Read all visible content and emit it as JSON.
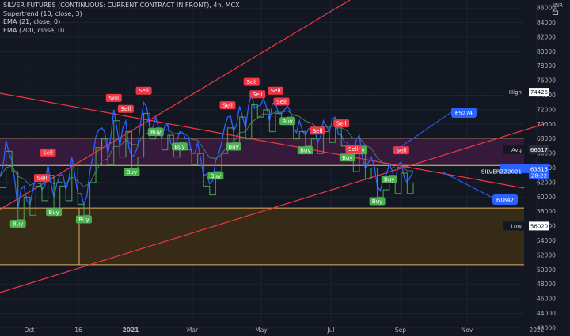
{
  "legend": {
    "symbol": "SILVER FUTURES (CONTINUOUS: CURRENT CONTRACT IN FRONT), 4h, MCX",
    "indicator1": "Supertrend (10, close, 3)",
    "indicator2": "EMA (21, close, 0)",
    "indicator3": "EMA (200, close, 0)"
  },
  "currency": "INR",
  "colors": {
    "background": "#131722",
    "price": "#2962ff",
    "buy": "#4caf50",
    "sell": "#f23645",
    "trend": "#f23645",
    "upper_zone": "#3d1b3f",
    "lower_zone": "#3a2e15",
    "grid": "#1e222d"
  },
  "chart_data": {
    "type": "line",
    "y_ticks": [
      42000,
      44000,
      46000,
      48000,
      50000,
      52000,
      54000,
      56000,
      58000,
      60000,
      62000,
      64000,
      66000,
      68000,
      70000,
      72000,
      74000,
      76000,
      78000,
      80000,
      82000,
      84000,
      86000
    ],
    "x_ticks": [
      "Oct",
      "16",
      "2021",
      "Mar",
      "May",
      "Jul",
      "Sep",
      "Nov",
      "2022"
    ],
    "ylim": [
      40900,
      87100
    ],
    "price_series": [
      62800,
      67800,
      65000,
      58400,
      61500,
      59000,
      63000,
      61000,
      64500,
      60000,
      63000,
      61000,
      65500,
      60500,
      59000,
      63500,
      68300,
      69500,
      66000,
      72000,
      67000,
      70500,
      65500,
      67000,
      73000,
      69500,
      71000,
      68000,
      70000,
      67000,
      69000,
      68000,
      66000,
      67500,
      63000,
      61800,
      65000,
      67500,
      71000,
      69000,
      72500,
      69500,
      74200,
      72500,
      73500,
      70500,
      73000,
      71500,
      72500,
      69500,
      70500,
      68500,
      69500,
      67500,
      70500,
      69000,
      71000,
      68500,
      67500,
      65000,
      68500,
      64000,
      65500,
      61500,
      62500,
      64500,
      62000,
      64800,
      62000,
      63500
    ],
    "series": [
      {
        "name": "SILVERZZ2021",
        "values": [
          62800,
          67800,
          65000,
          58400,
          61500,
          59000,
          63000,
          61000,
          64500,
          60000,
          63000,
          61000,
          65500,
          60500,
          59000,
          63500,
          68300,
          69500,
          66000,
          72000,
          67000,
          70500,
          65500,
          67000,
          73000,
          69500,
          71000,
          68000,
          70000,
          67000,
          69000,
          68000,
          66000,
          67500,
          63000,
          61800,
          65000,
          67500,
          71000,
          69000,
          72500,
          69500,
          74200,
          72500,
          73500,
          70500,
          73000,
          71500,
          72500,
          69500,
          70500,
          68500,
          69500,
          67500,
          70500,
          69000,
          71000,
          68500,
          67500,
          65000,
          68500,
          64000,
          65500,
          61500,
          62500,
          64500,
          62000,
          64800,
          62000,
          63500
        ]
      }
    ],
    "price_labels": [
      {
        "label": "High",
        "value": "74426",
        "y": 74426
      },
      {
        "label": "Avg",
        "value": "66517",
        "y": 66517
      },
      {
        "label": "SILVERZZ2021",
        "value": "63515",
        "extra": "28:22",
        "y": 63515
      },
      {
        "label": "Low",
        "value": "56020",
        "y": 56020
      }
    ],
    "levels": {
      "upper_zone": [
        64350,
        68100
      ],
      "lower_zone": [
        50700,
        58500
      ],
      "high_line": 74426
    },
    "annotations": [
      {
        "text": "65274",
        "y": 70000
      },
      {
        "text": "61847",
        "y": 59000
      }
    ],
    "signals": [
      {
        "type": "Buy",
        "i": 3
      },
      {
        "type": "Sell",
        "i": 7
      },
      {
        "type": "Buy",
        "i": 9
      },
      {
        "type": "Sell",
        "i": 8
      },
      {
        "type": "Buy",
        "i": 14
      },
      {
        "type": "Sell",
        "i": 19
      },
      {
        "type": "Sell",
        "i": 21
      },
      {
        "type": "Buy",
        "i": 22
      },
      {
        "type": "Sell",
        "i": 24
      },
      {
        "type": "Buy",
        "i": 26
      },
      {
        "type": "Buy",
        "i": 30
      },
      {
        "type": "Buy",
        "i": 36
      },
      {
        "type": "Sell",
        "i": 38
      },
      {
        "type": "Buy",
        "i": 39
      },
      {
        "type": "Sell",
        "i": 42
      },
      {
        "type": "Sell",
        "i": 43
      },
      {
        "type": "Sell",
        "i": 46
      },
      {
        "type": "Buy",
        "i": 48
      },
      {
        "type": "Sell",
        "i": 47
      },
      {
        "type": "Buy",
        "i": 51
      },
      {
        "type": "Sell",
        "i": 53
      },
      {
        "type": "Sell",
        "i": 57
      },
      {
        "type": "Buy",
        "i": 58
      },
      {
        "type": "Buy",
        "i": 60
      },
      {
        "type": "Sell",
        "i": 59
      },
      {
        "type": "Buy",
        "i": 63
      },
      {
        "type": "Buy",
        "i": 65
      },
      {
        "type": "Sell",
        "i": 67
      }
    ]
  }
}
